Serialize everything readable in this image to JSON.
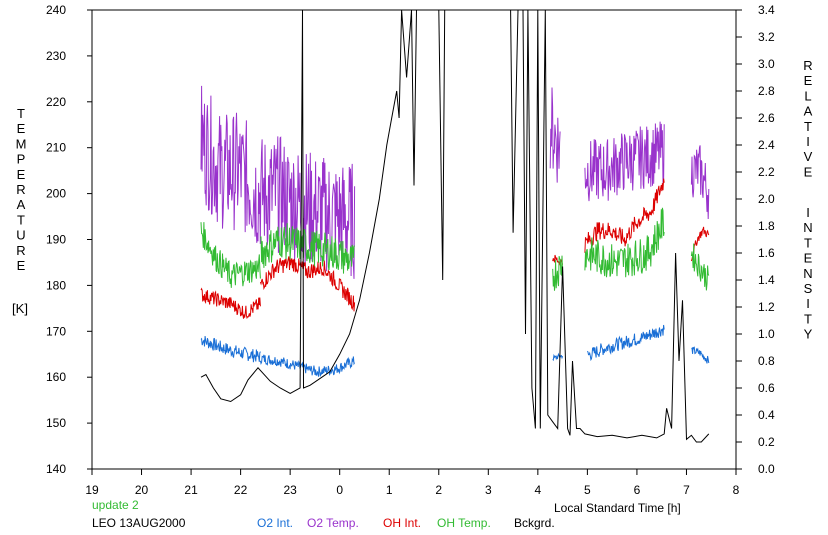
{
  "chart_data": {
    "type": "line",
    "x_ticks": [
      "19",
      "20",
      "21",
      "22",
      "23",
      "0",
      "1",
      "2",
      "3",
      "4",
      "5",
      "6",
      "7",
      "8"
    ],
    "x_range": [
      19,
      32
    ],
    "y_left": {
      "label_letters": [
        "T",
        "E",
        "M",
        "P",
        "E",
        "R",
        "A",
        "T",
        "U",
        "R",
        "E"
      ],
      "unit": "[K]",
      "range": [
        140,
        240
      ],
      "ticks": [
        "140",
        "150",
        "160",
        "170",
        "180",
        "190",
        "200",
        "210",
        "220",
        "230",
        "240"
      ]
    },
    "y_right": {
      "label_letters_1": [
        "R",
        "E",
        "L",
        "A",
        "T",
        "I",
        "V",
        "E"
      ],
      "label_letters_2": [
        "I",
        "N",
        "T",
        "E",
        "N",
        "S",
        "I",
        "T",
        "Y"
      ],
      "range": [
        0.0,
        3.4
      ],
      "ticks": [
        "0.0",
        "0.2",
        "0.4",
        "0.6",
        "0.8",
        "1.0",
        "1.2",
        "1.4",
        "1.6",
        "1.8",
        "2.0",
        "2.2",
        "2.4",
        "2.6",
        "2.8",
        "3.0",
        "3.2",
        "3.4"
      ]
    },
    "xlabel": "Local Standard Time [h]",
    "series": [
      {
        "name": "O2 Int.",
        "color": "#1a6fd6",
        "axis": "right",
        "segments": [
          {
            "x0": 21.2,
            "x1": 22.4,
            "base": [
              0.96,
              0.9,
              0.86,
              0.83
            ],
            "noise": 0.05
          },
          {
            "x0": 22.4,
            "x1": 24.3,
            "base": [
              0.82,
              0.8,
              0.76,
              0.72,
              0.74,
              0.8
            ],
            "noise": 0.04
          },
          {
            "x0": 28.3,
            "x1": 28.5,
            "base": [
              0.82,
              0.84
            ],
            "noise": 0.02
          },
          {
            "x0": 29.0,
            "x1": 30.55,
            "base": [
              0.84,
              0.9,
              0.94,
              0.98,
              1.04
            ],
            "noise": 0.05
          },
          {
            "x0": 31.1,
            "x1": 31.45,
            "base": [
              0.88,
              0.86,
              0.8
            ],
            "noise": 0.03
          }
        ]
      },
      {
        "name": "O2 Temp.",
        "color": "#9933cc",
        "axis": "left",
        "segments": [
          {
            "x0": 21.2,
            "x1": 24.3,
            "base": [
              212,
              205,
              205,
              200,
              200,
              198,
              196,
              195,
              194
            ],
            "noise": 13
          },
          {
            "x0": 28.25,
            "x1": 28.45,
            "base": [
              215,
              210
            ],
            "noise": 10
          },
          {
            "x0": 28.95,
            "x1": 30.55,
            "base": [
              205,
              205,
              207,
              208,
              209
            ],
            "noise": 7
          },
          {
            "x0": 31.1,
            "x1": 31.45,
            "base": [
              205,
              205,
              200
            ],
            "noise": 6
          }
        ]
      },
      {
        "name": "OH Int.",
        "color": "#dd0000",
        "axis": "left",
        "segments": [
          {
            "x0": 21.2,
            "x1": 22.4,
            "base": [
              178,
              177,
              176,
              174,
              176
            ],
            "noise": 1.6
          },
          {
            "x0": 22.4,
            "x1": 24.3,
            "base": [
              180,
              184,
              185,
              183,
              184,
              180,
              176
            ],
            "noise": 1.8
          },
          {
            "x0": 28.3,
            "x1": 28.5,
            "base": [
              186,
              185
            ],
            "noise": 1
          },
          {
            "x0": 28.95,
            "x1": 30.55,
            "base": [
              189,
              192,
              192,
              190,
              194,
              196,
              203
            ],
            "noise": 2
          },
          {
            "x0": 31.1,
            "x1": 31.45,
            "base": [
              186,
              190,
              192,
              191
            ],
            "noise": 1
          }
        ]
      },
      {
        "name": "OH Temp.",
        "color": "#33bb33",
        "axis": "left",
        "segments": [
          {
            "x0": 21.2,
            "x1": 22.4,
            "base": [
              192,
              186,
              182,
              183,
              184
            ],
            "noise": 3
          },
          {
            "x0": 22.4,
            "x1": 24.3,
            "base": [
              187,
              190,
              189,
              188,
              187,
              185
            ],
            "noise": 4
          },
          {
            "x0": 28.3,
            "x1": 28.5,
            "base": [
              182,
              185
            ],
            "noise": 4
          },
          {
            "x0": 28.95,
            "x1": 30.55,
            "base": [
              187,
              186,
              185,
              186,
              187,
              194
            ],
            "noise": 4
          },
          {
            "x0": 31.1,
            "x1": 31.45,
            "base": [
              187,
              184,
              181
            ],
            "noise": 3
          }
        ]
      },
      {
        "name": "Bckgrd.",
        "color": "#000000",
        "axis": "right",
        "points": [
          [
            21.2,
            0.68
          ],
          [
            21.3,
            0.7
          ],
          [
            21.45,
            0.6
          ],
          [
            21.6,
            0.52
          ],
          [
            21.8,
            0.5
          ],
          [
            22.0,
            0.55
          ],
          [
            22.15,
            0.66
          ],
          [
            22.35,
            0.75
          ],
          [
            22.6,
            0.65
          ],
          [
            22.8,
            0.6
          ],
          [
            23.0,
            0.56
          ],
          [
            23.2,
            0.6
          ],
          [
            23.25,
            3.4
          ],
          [
            23.27,
            0.6
          ],
          [
            23.4,
            0.62
          ],
          [
            23.6,
            0.67
          ],
          [
            23.8,
            0.72
          ],
          [
            24.0,
            0.85
          ],
          [
            24.2,
            1.0
          ],
          [
            24.4,
            1.25
          ],
          [
            24.6,
            1.6
          ],
          [
            24.8,
            2.0
          ],
          [
            24.95,
            2.4
          ],
          [
            25.05,
            2.6
          ],
          [
            25.15,
            2.8
          ],
          [
            25.2,
            2.6
          ],
          [
            25.25,
            3.4
          ],
          [
            25.35,
            2.9
          ],
          [
            25.45,
            3.4
          ],
          [
            25.5,
            2.1
          ],
          [
            25.55,
            3.4
          ],
          [
            26.0,
            3.4
          ],
          [
            26.08,
            1.4
          ],
          [
            26.12,
            3.4
          ],
          [
            26.2,
            3.4
          ],
          [
            27.45,
            3.4
          ],
          [
            27.5,
            1.75
          ],
          [
            27.6,
            3.4
          ],
          [
            27.7,
            3.4
          ],
          [
            27.75,
            1.0
          ],
          [
            27.8,
            3.4
          ],
          [
            27.88,
            0.6
          ],
          [
            27.95,
            0.3
          ],
          [
            28.0,
            3.4
          ],
          [
            28.05,
            0.3
          ],
          [
            28.15,
            3.4
          ],
          [
            28.2,
            0.4
          ],
          [
            28.3,
            0.35
          ],
          [
            28.4,
            0.3
          ],
          [
            28.5,
            1.5
          ],
          [
            28.6,
            0.3
          ],
          [
            28.65,
            0.25
          ],
          [
            28.7,
            0.8
          ],
          [
            28.78,
            0.3
          ],
          [
            28.85,
            0.3
          ],
          [
            28.95,
            0.26
          ],
          [
            29.2,
            0.24
          ],
          [
            29.5,
            0.25
          ],
          [
            29.8,
            0.23
          ],
          [
            30.1,
            0.25
          ],
          [
            30.4,
            0.23
          ],
          [
            30.55,
            0.26
          ],
          [
            30.6,
            0.45
          ],
          [
            30.7,
            0.3
          ],
          [
            30.78,
            1.6
          ],
          [
            30.85,
            0.8
          ],
          [
            30.92,
            1.25
          ],
          [
            31.0,
            0.22
          ],
          [
            31.1,
            0.25
          ],
          [
            31.2,
            0.2
          ],
          [
            31.3,
            0.2
          ],
          [
            31.45,
            0.26
          ]
        ]
      }
    ]
  },
  "footer": {
    "update": "update 2",
    "station": "LEO 13AUG2000",
    "update_color": "#33bb33"
  }
}
